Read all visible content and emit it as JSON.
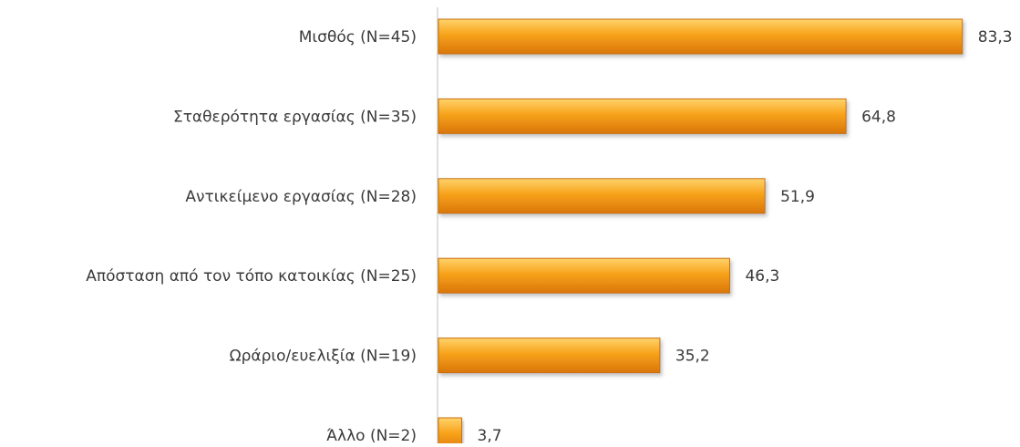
{
  "chart_data": {
    "type": "bar",
    "orientation": "horizontal",
    "title": "",
    "xlabel": "",
    "ylabel": "",
    "grid": false,
    "legend": "none",
    "xlim": [
      0,
      100
    ],
    "categories": [
      "Μισθός (Ν=45)",
      "Σταθερότητα εργασίας (Ν=35)",
      "Αντικείμενο εργασίας (Ν=28)",
      "Απόσταση από τον τόπο κατοικίας (Ν=25)",
      "Ωράριο/ευελιξία (Ν=19)",
      "Άλλο (Ν=2)"
    ],
    "values": [
      83.3,
      64.8,
      51.9,
      46.3,
      35.2,
      3.7
    ],
    "value_labels": [
      "83,3",
      "64,8",
      "51,9",
      "46,3",
      "35,2",
      "3,7"
    ],
    "colors": {
      "bar_top": "#ffd36b",
      "bar_mid": "#f7a21a",
      "bar_bottom": "#d9760a",
      "bar_shadow": "#b3b3b3",
      "bar_stroke": "#c7700c",
      "axis": "#bfbfbf",
      "text": "#3a3a3a"
    }
  }
}
